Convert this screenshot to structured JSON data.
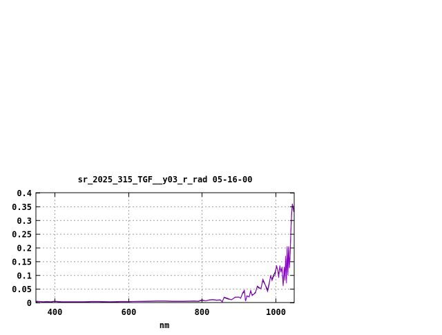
{
  "chart_data": {
    "type": "line",
    "title": "sr_2025_315_TGF__y03_r_rad 05-16-00",
    "xlabel": "nm",
    "ylabel": "",
    "xlim": [
      350,
      1050
    ],
    "ylim": [
      0,
      0.4
    ],
    "xticks": [
      400,
      600,
      800,
      1000
    ],
    "xtick_labels": [
      "400",
      "600",
      "800",
      "1000"
    ],
    "yticks": [
      0,
      0.05,
      0.1,
      0.15,
      0.2,
      0.25,
      0.3,
      0.35,
      0.4
    ],
    "ytick_labels": [
      "0",
      "0.05",
      "0.1",
      "0.15",
      "0.2",
      "0.25",
      "0.3",
      "0.35",
      "0.4"
    ],
    "grid": true,
    "legend": "none",
    "series": [
      {
        "color": "#000000",
        "x": [
          350,
          360,
          370,
          380,
          390,
          400,
          420,
          450,
          480,
          500,
          520,
          550,
          580,
          600,
          620,
          650,
          680,
          700,
          720,
          750,
          780,
          790,
          800,
          810,
          820,
          830,
          840,
          850,
          855,
          860,
          870,
          880,
          890,
          900,
          905,
          910,
          915,
          918,
          922,
          928,
          932,
          936,
          940,
          945,
          950,
          955,
          960,
          965,
          970,
          975,
          978,
          982,
          986,
          990,
          994,
          998,
          1002,
          1005,
          1008,
          1011,
          1014,
          1017,
          1020,
          1023,
          1025,
          1027,
          1029,
          1031,
          1033,
          1035,
          1037,
          1039,
          1041,
          1043,
          1045,
          1047,
          1049
        ],
        "y": [
          0.003,
          0.004,
          0.002,
          0.003,
          0.002,
          0.004,
          0.002,
          0.002,
          0.002,
          0.003,
          0.003,
          0.002,
          0.003,
          0.003,
          0.004,
          0.004,
          0.005,
          0.005,
          0.004,
          0.004,
          0.005,
          0.004,
          0.008,
          0.006,
          0.009,
          0.01,
          0.008,
          0.009,
          0.003,
          0.018,
          0.013,
          0.01,
          0.019,
          0.02,
          0.016,
          0.033,
          0.04,
          0.006,
          0.023,
          0.022,
          0.04,
          0.028,
          0.03,
          0.038,
          0.058,
          0.052,
          0.052,
          0.08,
          0.068,
          0.055,
          0.045,
          0.07,
          0.095,
          0.085,
          0.1,
          0.11,
          0.13,
          0.12,
          0.1,
          0.13,
          0.115,
          0.125,
          0.065,
          0.125,
          0.09,
          0.16,
          0.085,
          0.195,
          0.11,
          0.2,
          0.13,
          0.17,
          0.26,
          0.32,
          0.355,
          0.345,
          0.33
        ]
      },
      {
        "color": "#9400d3",
        "x": [
          350,
          360,
          370,
          380,
          390,
          400,
          420,
          450,
          480,
          500,
          520,
          550,
          580,
          600,
          620,
          650,
          680,
          700,
          720,
          750,
          780,
          790,
          800,
          810,
          820,
          830,
          840,
          850,
          855,
          860,
          870,
          880,
          890,
          900,
          905,
          910,
          915,
          918,
          922,
          928,
          932,
          936,
          940,
          945,
          950,
          955,
          960,
          965,
          970,
          975,
          978,
          982,
          986,
          990,
          994,
          998,
          1002,
          1005,
          1008,
          1011,
          1014,
          1017,
          1020,
          1023,
          1025,
          1027,
          1029,
          1031,
          1033,
          1035,
          1037,
          1039,
          1041,
          1043,
          1045,
          1047,
          1049
        ],
        "y": [
          0.005,
          0.004,
          0.003,
          0.004,
          0.003,
          0.005,
          0.003,
          0.003,
          0.003,
          0.004,
          0.004,
          0.003,
          0.004,
          0.004,
          0.004,
          0.005,
          0.006,
          0.006,
          0.005,
          0.005,
          0.006,
          0.005,
          0.01,
          0.006,
          0.01,
          0.011,
          0.009,
          0.01,
          0.002,
          0.02,
          0.015,
          0.01,
          0.02,
          0.02,
          0.015,
          0.035,
          0.045,
          0.005,
          0.025,
          0.02,
          0.045,
          0.025,
          0.03,
          0.035,
          0.06,
          0.055,
          0.05,
          0.085,
          0.07,
          0.05,
          0.04,
          0.065,
          0.1,
          0.08,
          0.095,
          0.1,
          0.135,
          0.12,
          0.09,
          0.135,
          0.11,
          0.13,
          0.06,
          0.13,
          0.08,
          0.17,
          0.07,
          0.205,
          0.1,
          0.205,
          0.125,
          0.18,
          0.265,
          0.33,
          0.36,
          0.35,
          0.335
        ]
      }
    ]
  }
}
